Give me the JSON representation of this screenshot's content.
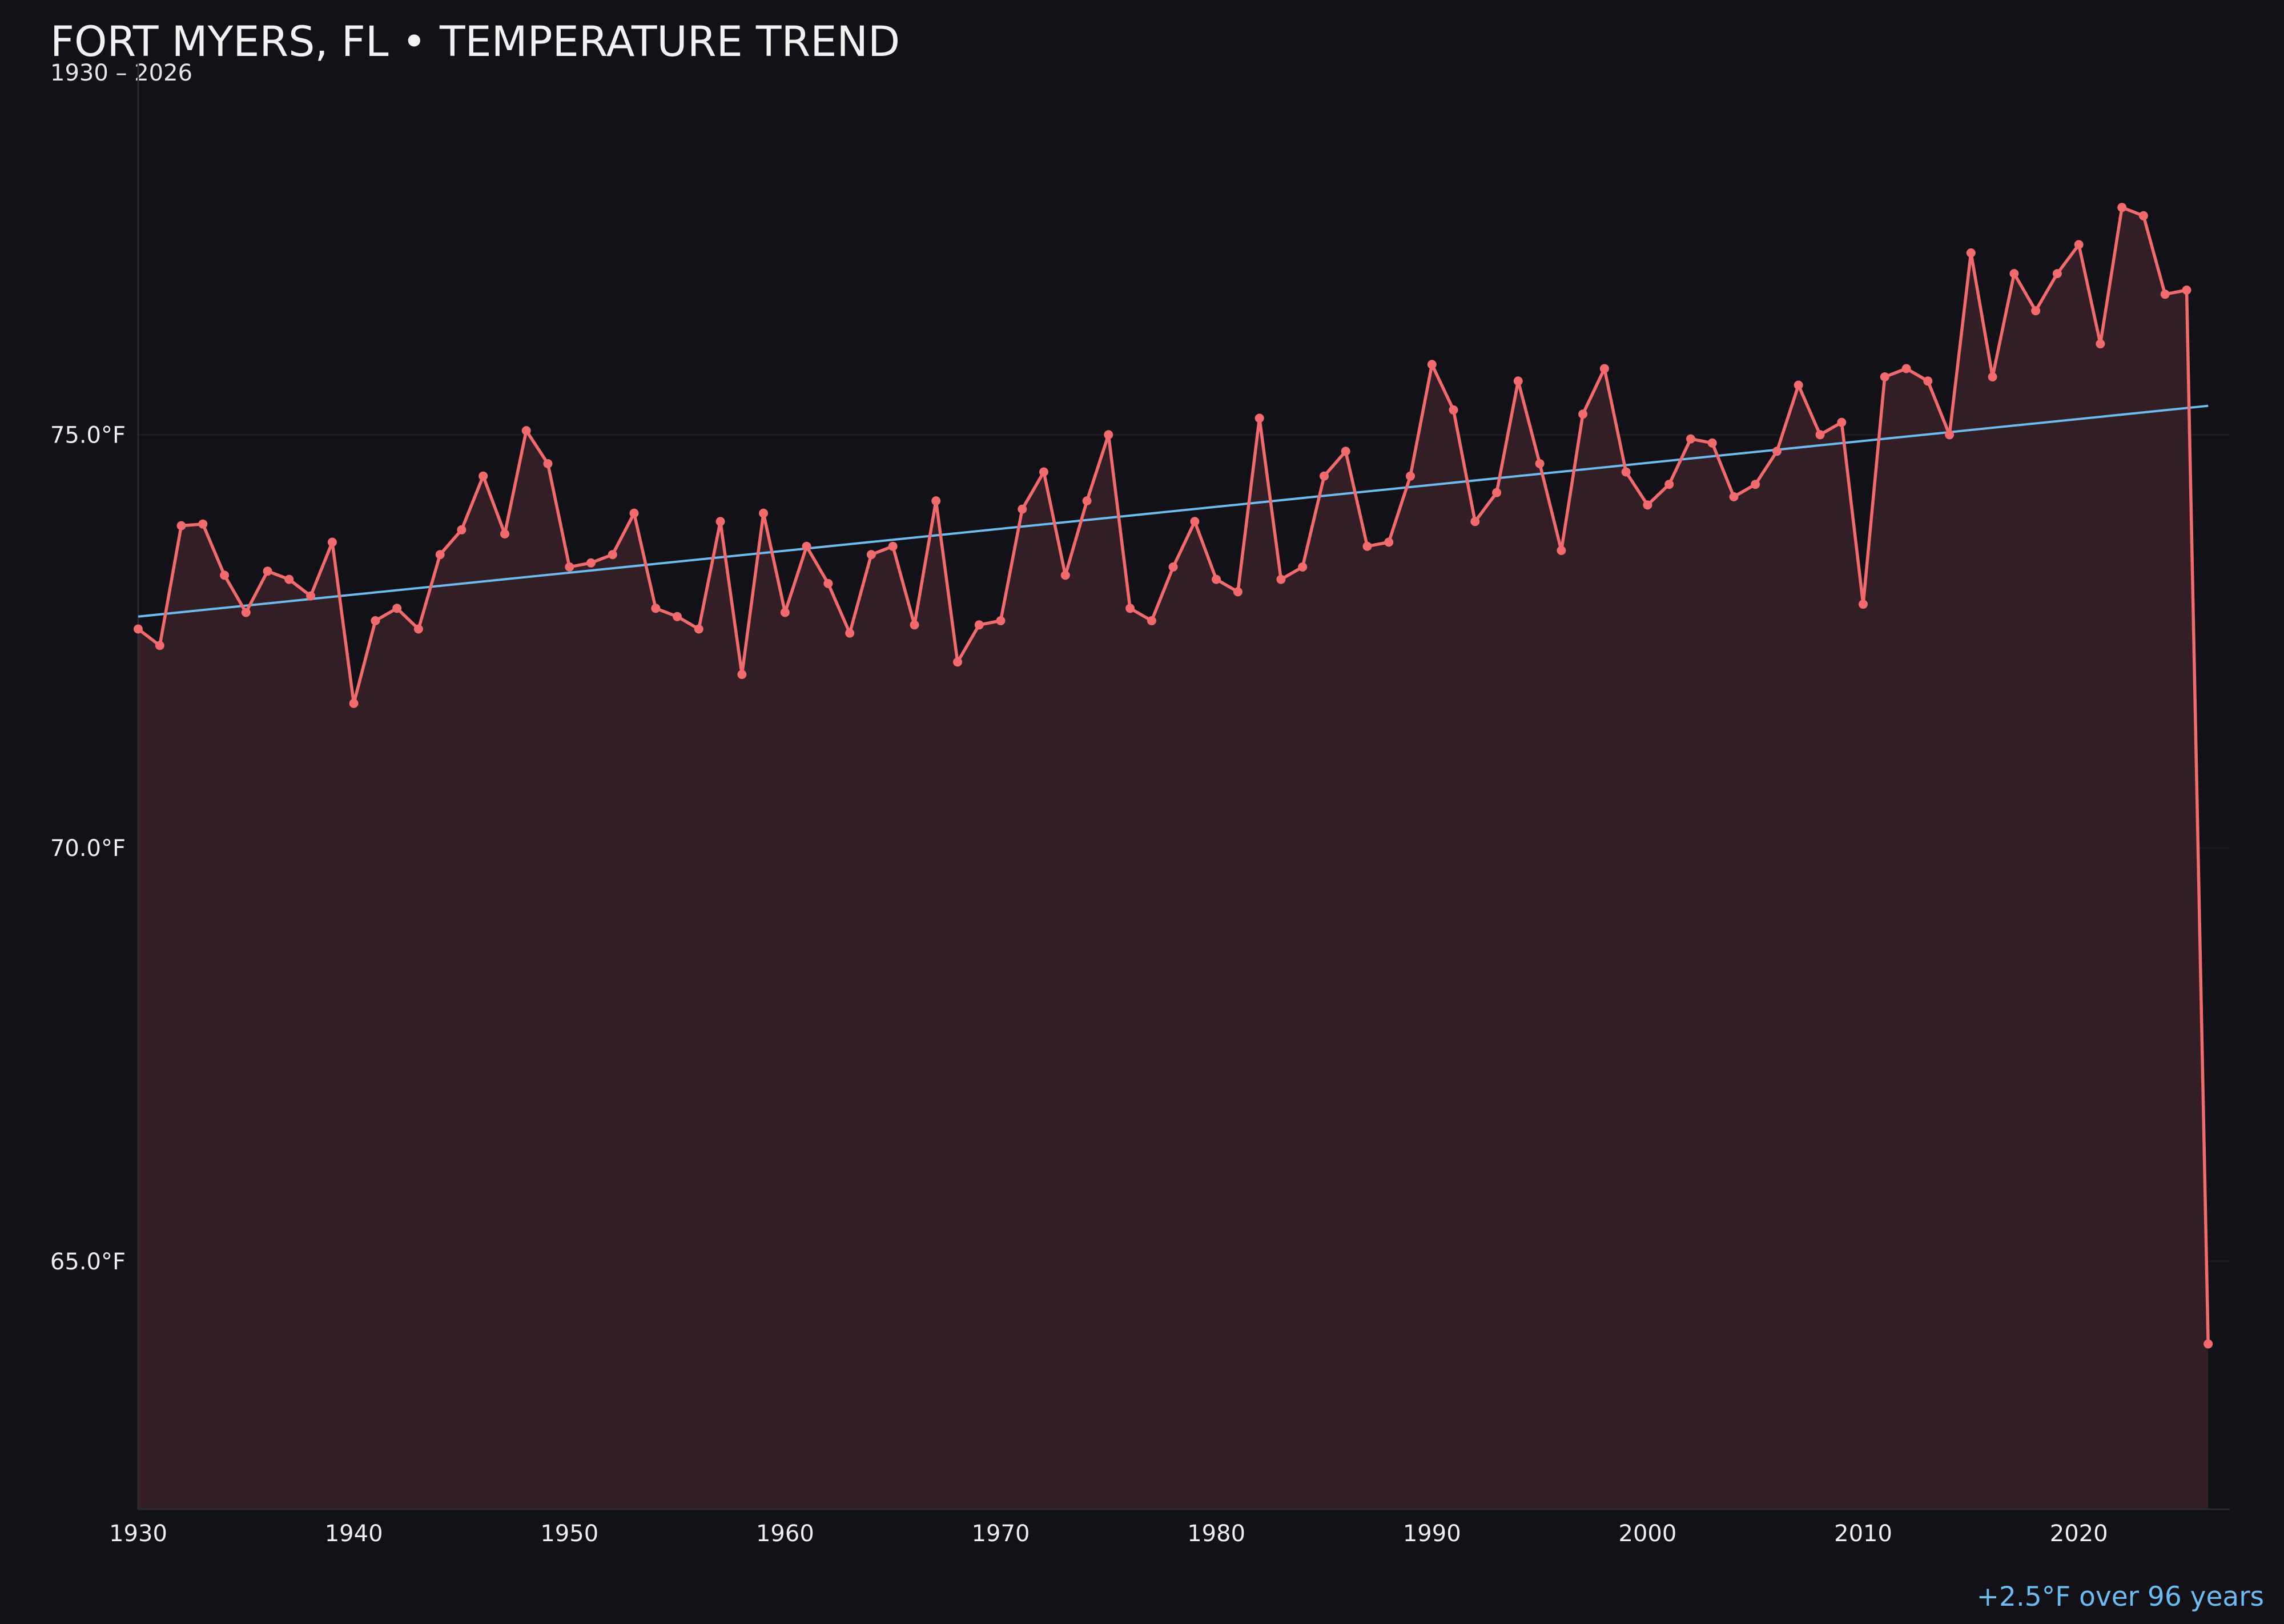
{
  "header": {
    "title": "FORT MYERS, FL • TEMPERATURE TREND",
    "subtitle": "1930 – 2026"
  },
  "annotation": "+2.5°F over 96 years",
  "colors": {
    "background": "#121117",
    "series": "#f06a6e",
    "area_fill": "#341e25",
    "trend": "#6cbcf0",
    "grid": "#1c1b21",
    "axis": "#2a2930"
  },
  "chart_data": {
    "type": "line",
    "title": "FORT MYERS, FL • TEMPERATURE TREND",
    "subtitle": "1930 – 2026",
    "xlabel": "",
    "ylabel": "",
    "xlim": [
      1930,
      2027
    ],
    "ylim": [
      62.0,
      79.5
    ],
    "grid": true,
    "legend": "none",
    "y_ticks": [
      {
        "value": 65.0,
        "label": "65.0°F"
      },
      {
        "value": 70.0,
        "label": "70.0°F"
      },
      {
        "value": 75.0,
        "label": "75.0°F"
      }
    ],
    "x_ticks": [
      {
        "value": 1930,
        "label": "1930"
      },
      {
        "value": 1940,
        "label": "1940"
      },
      {
        "value": 1950,
        "label": "1950"
      },
      {
        "value": 1960,
        "label": "1960"
      },
      {
        "value": 1970,
        "label": "1970"
      },
      {
        "value": 1980,
        "label": "1980"
      },
      {
        "value": 1990,
        "label": "1990"
      },
      {
        "value": 2000,
        "label": "2000"
      },
      {
        "value": 2010,
        "label": "2010"
      },
      {
        "value": 2020,
        "label": "2020"
      }
    ],
    "trend": {
      "x": [
        1930,
        2026
      ],
      "y": [
        72.8,
        75.35
      ]
    },
    "x": [
      1930,
      1931,
      1932,
      1933,
      1934,
      1935,
      1936,
      1937,
      1938,
      1939,
      1940,
      1941,
      1942,
      1943,
      1944,
      1945,
      1946,
      1947,
      1948,
      1949,
      1950,
      1951,
      1952,
      1953,
      1954,
      1955,
      1956,
      1957,
      1958,
      1959,
      1960,
      1961,
      1962,
      1963,
      1964,
      1965,
      1966,
      1967,
      1968,
      1969,
      1970,
      1971,
      1972,
      1973,
      1974,
      1975,
      1976,
      1977,
      1978,
      1979,
      1980,
      1981,
      1982,
      1983,
      1984,
      1985,
      1986,
      1987,
      1988,
      1989,
      1990,
      1991,
      1992,
      1993,
      1994,
      1995,
      1996,
      1997,
      1998,
      1999,
      2000,
      2001,
      2002,
      2003,
      2004,
      2005,
      2006,
      2007,
      2008,
      2009,
      2010,
      2011,
      2012,
      2013,
      2014,
      2015,
      2016,
      2017,
      2018,
      2019,
      2020,
      2021,
      2022,
      2023,
      2024,
      2025,
      2026
    ],
    "values": [
      72.65,
      72.45,
      73.9,
      73.92,
      73.3,
      72.85,
      73.35,
      73.25,
      73.05,
      73.7,
      71.75,
      72.75,
      72.9,
      72.65,
      73.55,
      73.85,
      74.5,
      73.8,
      75.05,
      74.65,
      73.4,
      73.45,
      73.55,
      74.05,
      72.9,
      72.8,
      72.65,
      73.95,
      72.1,
      74.05,
      72.85,
      73.65,
      73.2,
      72.6,
      73.55,
      73.65,
      72.7,
      74.2,
      72.25,
      72.7,
      72.75,
      74.1,
      74.55,
      73.3,
      74.2,
      75.0,
      72.9,
      72.75,
      73.4,
      73.95,
      73.25,
      73.1,
      75.2,
      73.25,
      73.4,
      74.5,
      74.8,
      73.65,
      73.7,
      74.5,
      75.85,
      75.3,
      73.95,
      74.3,
      75.65,
      74.65,
      73.6,
      75.25,
      75.8,
      74.55,
      74.15,
      74.4,
      74.95,
      74.9,
      74.25,
      74.4,
      74.8,
      75.6,
      75.0,
      75.15,
      72.95,
      75.7,
      75.8,
      75.65,
      75.0,
      77.2,
      75.7,
      76.95,
      76.5,
      76.95,
      77.3,
      76.1,
      77.75,
      77.65,
      76.7,
      76.75,
      64.0
    ]
  }
}
